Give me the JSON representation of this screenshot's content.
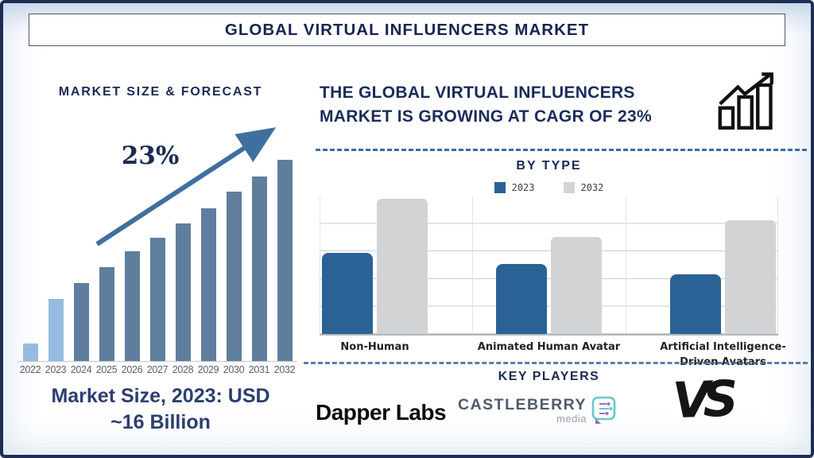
{
  "header": {
    "title": "GLOBAL VIRTUAL INFLUENCERS MARKET"
  },
  "left_panel": {
    "chart_title": "MARKET SIZE & FORECAST",
    "cagr_label": "23%",
    "market_size_note_line1": "Market Size, 2023: USD",
    "market_size_note_line2": "~16 Billion"
  },
  "right_panel": {
    "headline_line1": "THE GLOBAL VIRTUAL INFLUENCERS",
    "headline_line2": "MARKET IS GROWING AT CAGR OF 23%",
    "section_by_type": "BY TYPE",
    "section_key_players": "KEY PLAYERS",
    "players": {
      "dapper_labs": "Dapper Labs",
      "castleberry": "CASTLEBERRY",
      "castleberry_sub": "media",
      "vs": "VS"
    }
  },
  "colors": {
    "navy": "#1a2a52",
    "steel_bar": "#5f7e9e",
    "light_bar": "#95bce0",
    "arrow": "#3f6f9f",
    "blue_2023": "#2b6295",
    "gray_2032": "#d2d3d5",
    "dashed_divider": "#3f6b99"
  },
  "chart_data": [
    {
      "type": "bar",
      "title": "MARKET SIZE & FORECAST",
      "categories": [
        "2022",
        "2023",
        "2024",
        "2025",
        "2026",
        "2027",
        "2028",
        "2029",
        "2030",
        "2031",
        "2032"
      ],
      "values_relative": [
        22,
        78,
        98,
        118,
        138,
        155,
        173,
        192,
        213,
        232,
        253
      ],
      "value_scale": "relative bar heights in px; no numeric y-axis shown",
      "highlight_categories": [
        "2022",
        "2023"
      ],
      "annotation": "23%",
      "known_point": "Market Size, 2023: USD ~16 Billion",
      "grid": false,
      "legend": false
    },
    {
      "type": "bar",
      "title": "BY TYPE",
      "categories": [
        "Non-Human",
        "Animated Human Avatar",
        "Artificial Intelligence-Driven Avatars"
      ],
      "series": [
        {
          "name": "2023",
          "values": [
            3.0,
            2.6,
            2.2
          ]
        },
        {
          "name": "2032",
          "values": [
            5.0,
            3.6,
            4.2
          ]
        }
      ],
      "value_scale": "horizontal gridline units; no numeric y-axis shown",
      "ylim": [
        0,
        5.2
      ],
      "grid": true,
      "legend_position": "top-center"
    }
  ]
}
